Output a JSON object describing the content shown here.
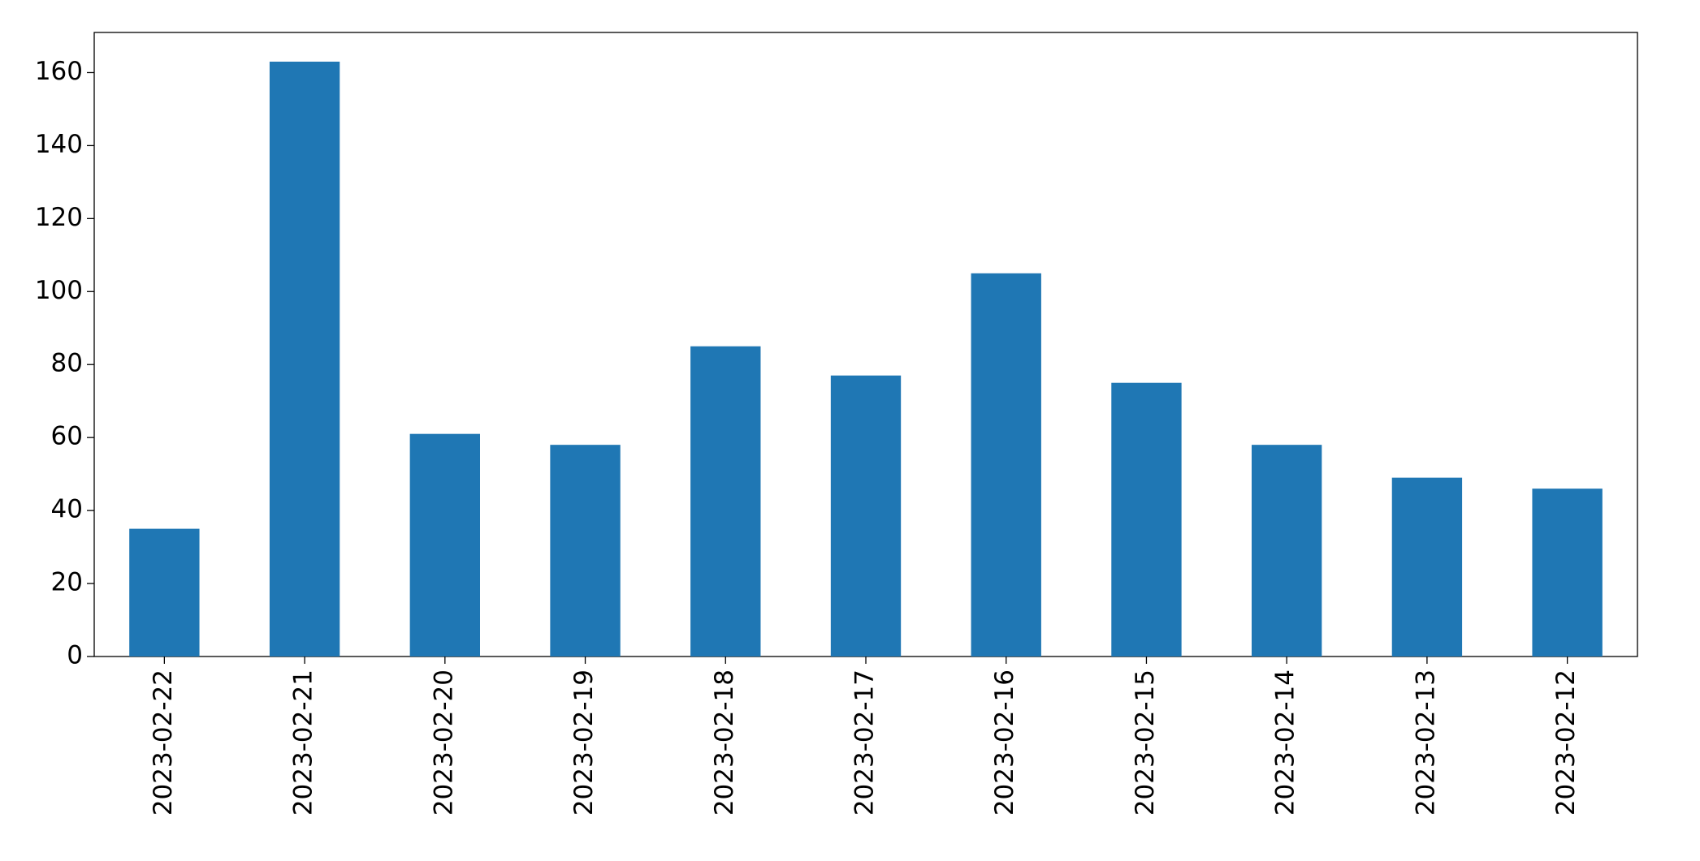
{
  "chart_data": {
    "type": "bar",
    "categories": [
      "2023-02-22",
      "2023-02-21",
      "2023-02-20",
      "2023-02-19",
      "2023-02-18",
      "2023-02-17",
      "2023-02-16",
      "2023-02-15",
      "2023-02-14",
      "2023-02-13",
      "2023-02-12"
    ],
    "values": [
      35,
      163,
      61,
      58,
      85,
      77,
      105,
      75,
      58,
      49,
      46
    ],
    "color": "#1f77b4",
    "ylim": [
      0,
      171
    ],
    "yticks": [
      0,
      20,
      40,
      60,
      80,
      100,
      120,
      140,
      160
    ],
    "grid": false
  }
}
